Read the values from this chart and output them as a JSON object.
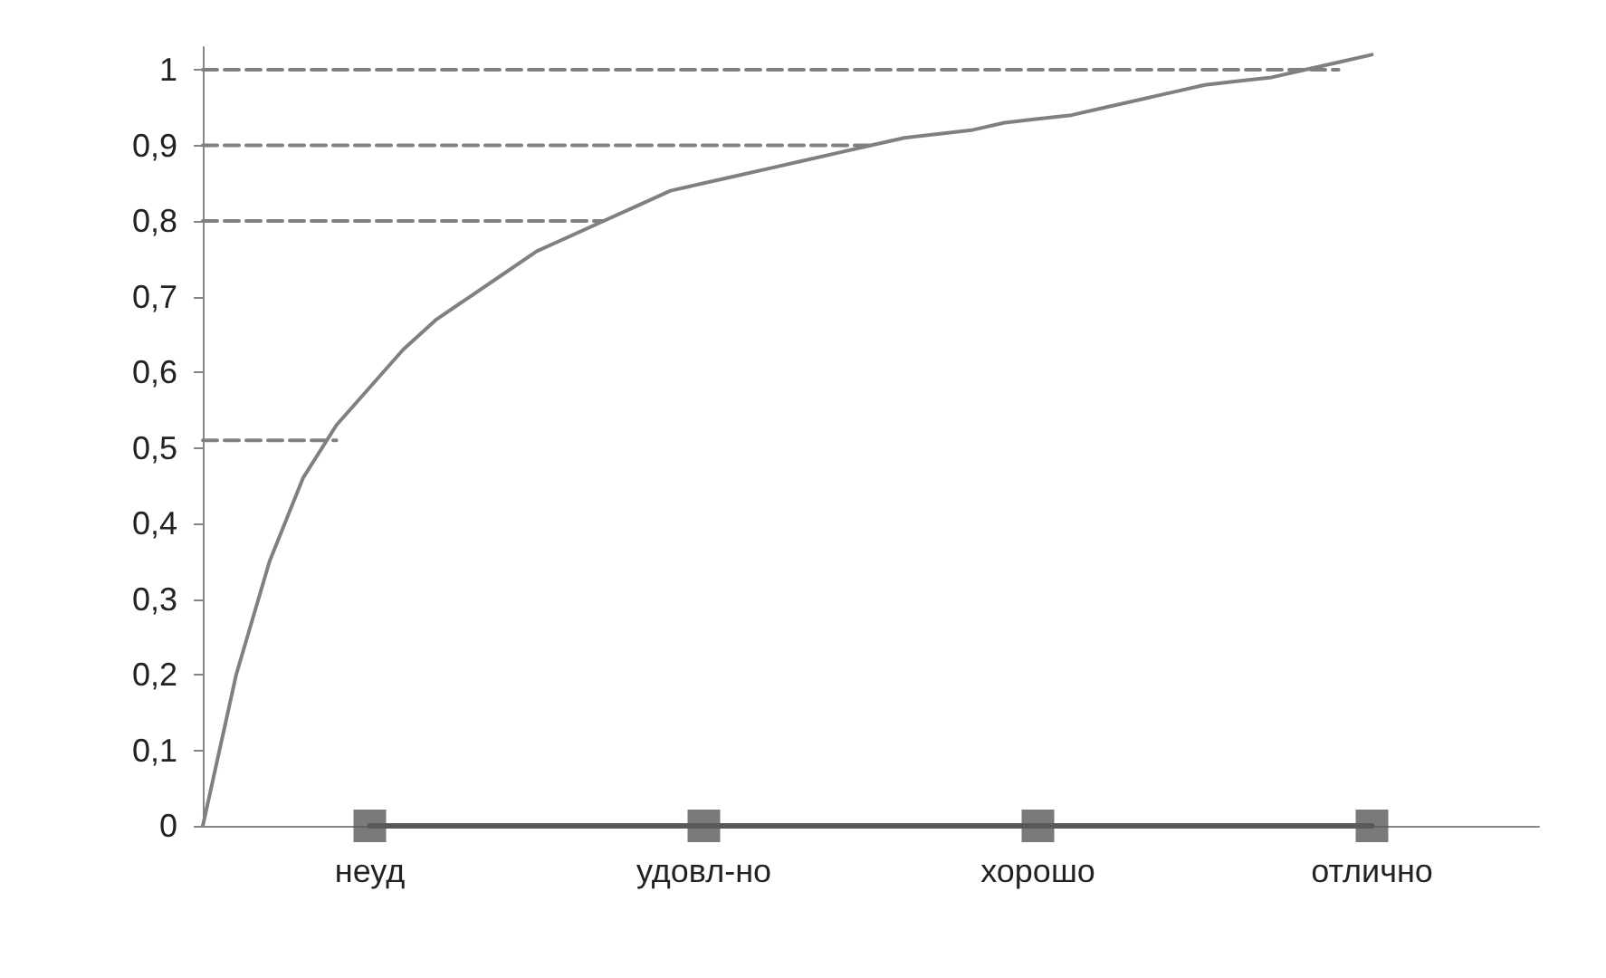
{
  "chart_data": {
    "type": "line",
    "categories": [
      null,
      null,
      null,
      null,
      null,
      "неуд",
      null,
      null,
      null,
      null,
      null,
      null,
      null,
      null,
      null,
      "удовл-но",
      null,
      null,
      null,
      null,
      null,
      null,
      null,
      null,
      null,
      "хорошо",
      null,
      null,
      null,
      null,
      null,
      null,
      null,
      null,
      null,
      "отлично",
      null,
      null,
      null,
      null,
      null
    ],
    "ylim": [
      0,
      1.03
    ],
    "yticks": [
      0,
      {
        "value": 0.1,
        "label": "0,1"
      },
      {
        "value": 0.2,
        "label": "0,2"
      },
      {
        "value": 0.3,
        "label": "0,3"
      },
      {
        "value": 0.4,
        "label": "0,4"
      },
      {
        "value": 0.5,
        "label": "0,5"
      },
      {
        "value": 0.6,
        "label": "0,6"
      },
      {
        "value": 0.7,
        "label": "0,7"
      },
      {
        "value": 0.8,
        "label": "0,8"
      },
      {
        "value": 0.9,
        "label": "0,9"
      },
      1
    ],
    "grid": false,
    "series": [
      {
        "color": "#595959",
        "values": [
          null,
          null,
          null,
          null,
          null,
          0,
          0,
          0,
          0,
          0,
          0,
          0,
          0,
          0,
          0,
          0,
          0,
          0,
          0,
          0,
          0,
          0,
          0,
          0,
          0,
          0,
          0,
          0,
          0,
          0,
          0,
          0,
          0,
          0,
          0,
          0,
          null,
          null,
          null,
          null,
          null
        ],
        "marker": "none",
        "line_style": "solid"
      },
      {
        "type": "scatter",
        "color": "#595959",
        "values": [
          null,
          null,
          null,
          null,
          null,
          0,
          null,
          null,
          null,
          null,
          null,
          null,
          null,
          null,
          null,
          0,
          null,
          null,
          null,
          null,
          null,
          null,
          null,
          null,
          null,
          0,
          null,
          null,
          null,
          null,
          null,
          null,
          null,
          null,
          null,
          0,
          null,
          null,
          null,
          null,
          null
        ],
        "marker": "square"
      },
      {
        "color": "#808080",
        "values": [
          0,
          0.2,
          0.35,
          0.46,
          0.53,
          0.58,
          0.63,
          0.67,
          0.7,
          0.73,
          0.76,
          0.78,
          0.8,
          0.82,
          0.84,
          0.85,
          0.86,
          0.87,
          0.88,
          0.89,
          0.9,
          0.91,
          0.915,
          0.92,
          0.93,
          0.935,
          0.94,
          0.95,
          0.96,
          0.97,
          0.98,
          0.985,
          0.99,
          1.0,
          1.01,
          1.02,
          null,
          null,
          null,
          null,
          null
        ],
        "marker": "none",
        "line_style": "solid"
      },
      {
        "color": "#808080",
        "values": [
          0.51,
          0.51,
          0.51,
          0.51,
          0.51,
          null,
          null,
          null,
          null,
          null,
          null,
          null,
          null,
          null,
          null,
          null,
          null,
          null,
          null,
          null,
          null,
          null,
          null,
          null,
          null,
          null,
          null,
          null,
          null,
          null,
          null,
          null,
          null,
          null,
          null,
          null,
          null,
          null,
          null,
          null,
          null
        ],
        "marker": "none",
        "line_style": "dashed"
      },
      {
        "color": "#808080",
        "values": [
          0.8,
          0.8,
          0.8,
          0.8,
          0.8,
          0.8,
          0.8,
          0.8,
          0.8,
          0.8,
          0.8,
          0.8,
          0.8,
          null,
          null,
          null,
          null,
          null,
          null,
          null,
          null,
          null,
          null,
          null,
          null,
          null,
          null,
          null,
          null,
          null,
          null,
          null,
          null,
          null,
          null,
          null,
          null,
          null,
          null,
          null,
          null
        ],
        "marker": "none",
        "line_style": "dashed"
      },
      {
        "color": "#808080",
        "values": [
          0.9,
          0.9,
          0.9,
          0.9,
          0.9,
          0.9,
          0.9,
          0.9,
          0.9,
          0.9,
          0.9,
          0.9,
          0.9,
          0.9,
          0.9,
          0.9,
          0.9,
          0.9,
          0.9,
          0.9,
          0.9,
          null,
          null,
          null,
          null,
          null,
          null,
          null,
          null,
          null,
          null,
          null,
          null,
          null,
          null,
          null,
          null,
          null,
          null,
          null,
          null
        ],
        "marker": "none",
        "line_style": "dashed"
      },
      {
        "color": "#808080",
        "values": [
          1.0,
          1.0,
          1.0,
          1.0,
          1.0,
          1.0,
          1.0,
          1.0,
          1.0,
          1.0,
          1.0,
          1.0,
          1.0,
          1.0,
          1.0,
          1.0,
          1.0,
          1.0,
          1.0,
          1.0,
          1.0,
          1.0,
          1.0,
          1.0,
          1.0,
          1.0,
          1.0,
          1.0,
          1.0,
          1.0,
          1.0,
          1.0,
          1.0,
          1.0,
          1.0,
          null,
          null,
          null,
          null,
          null,
          null
        ],
        "marker": "none",
        "line_style": "dashed"
      }
    ]
  }
}
